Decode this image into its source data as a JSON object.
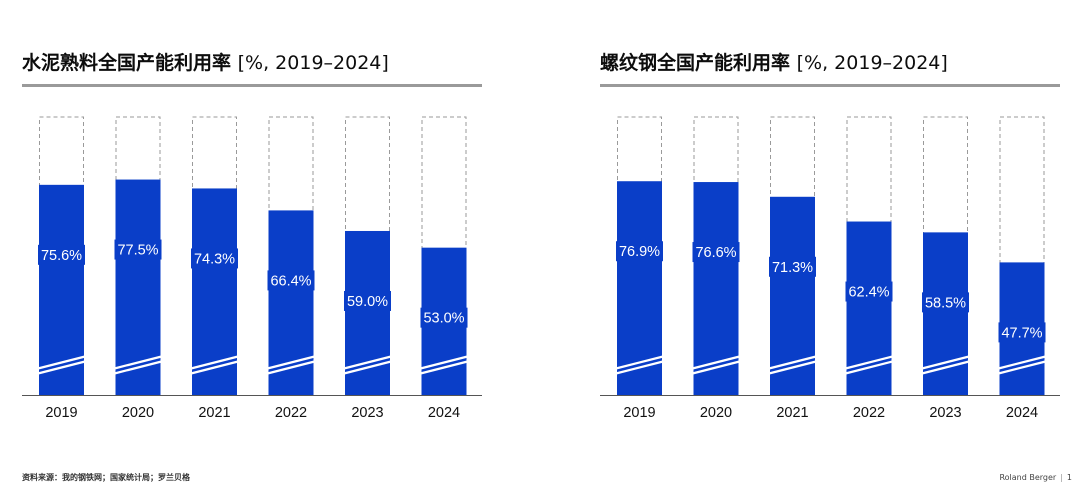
{
  "chart_data": [
    {
      "type": "bar",
      "title": "水泥熟料全国产能利用率",
      "unit": "[%, 2019–2024]",
      "categories": [
        "2019",
        "2020",
        "2021",
        "2022",
        "2023",
        "2024"
      ],
      "values": [
        75.6,
        77.5,
        74.3,
        66.4,
        59.0,
        53.0
      ],
      "value_labels": [
        "75.6%",
        "77.5%",
        "74.3%",
        "66.4%",
        "59.0%",
        "53.0%"
      ],
      "ylim": [
        0,
        100
      ],
      "axis_break": true,
      "bar_color": "#0a3ec8",
      "capacity_outline_color": "#9a9a9a"
    },
    {
      "type": "bar",
      "title": "螺纹钢全国产能利用率",
      "unit": "[%, 2019–2024]",
      "categories": [
        "2019",
        "2020",
        "2021",
        "2022",
        "2023",
        "2024"
      ],
      "values": [
        76.9,
        76.6,
        71.3,
        62.4,
        58.5,
        47.7
      ],
      "value_labels": [
        "76.9%",
        "76.6%",
        "71.3%",
        "62.4%",
        "58.5%",
        "47.7%"
      ],
      "ylim": [
        0,
        100
      ],
      "axis_break": true,
      "bar_color": "#0a3ec8",
      "capacity_outline_color": "#9a9a9a"
    }
  ],
  "footer": {
    "source": "资料来源：我的钢铁网；国家统计局；罗兰贝格",
    "brand": "Roland Berger",
    "page": "1"
  }
}
